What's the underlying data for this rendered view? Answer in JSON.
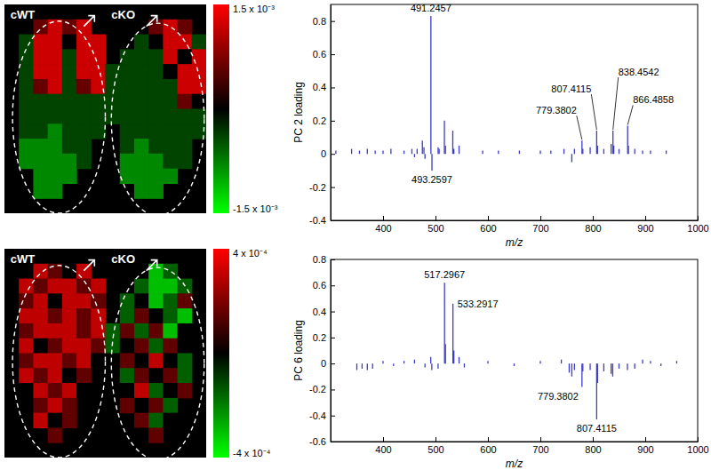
{
  "chart_data": [
    {
      "type": "heatmap",
      "section_labels": [
        "cWT",
        "cKO"
      ],
      "cells": [
        [
          null,
          null,
          null,
          null,
          null,
          null,
          null,
          null,
          null,
          null,
          null,
          null,
          null,
          null
        ],
        [
          null,
          null,
          0.0006,
          0.0012,
          0.0006,
          0.0012,
          null,
          null,
          null,
          null,
          0.0006,
          0.0012,
          0.0006,
          null
        ],
        [
          null,
          -0.0004,
          0.0012,
          0.0012,
          0,
          0.0012,
          0.0012,
          null,
          null,
          -0.0004,
          0,
          0.0012,
          0.0012,
          -0.0004
        ],
        [
          null,
          -0.0004,
          0.0012,
          0.0012,
          -0.0004,
          0.0012,
          0.0012,
          null,
          -0.0004,
          -0.0004,
          -0.0004,
          0.0012,
          0,
          0.0012
        ],
        [
          null,
          -0.0004,
          0.0012,
          0.0012,
          -0.0004,
          0.0012,
          0.0012,
          -0.0004,
          -0.0004,
          -0.0004,
          -0.0004,
          0,
          0.0012,
          0.0012
        ],
        [
          null,
          -0.0004,
          0.0006,
          0.0012,
          -0.0004,
          0.0006,
          0.0012,
          -0.0004,
          -0.0004,
          -0.0004,
          -0.0004,
          -0.0004,
          0.0012,
          0.0012
        ],
        [
          null,
          -0.0004,
          -0.0004,
          -0.0004,
          -0.0004,
          -0.0004,
          -0.0004,
          -0.0004,
          -0.0004,
          -0.0004,
          -0.0004,
          -0.0004,
          0.0006,
          0
        ],
        [
          null,
          -0.0004,
          -0.0004,
          -0.0004,
          -0.0004,
          -0.0004,
          -0.0004,
          -0.0004,
          -0.0004,
          -0.0004,
          -0.0004,
          -0.0004,
          -0.0004,
          -0.0004
        ],
        [
          null,
          -0.0004,
          -0.0004,
          -0.0008,
          -0.0004,
          -0.0004,
          -0.0004,
          null,
          -0.0004,
          -0.0004,
          -0.0004,
          -0.0004,
          -0.0004,
          -0.0004
        ],
        [
          null,
          -0.0008,
          -0.0008,
          -0.0008,
          -0.0004,
          -0.0004,
          null,
          null,
          -0.0004,
          -0.0008,
          -0.0004,
          -0.0004,
          -0.0004,
          null
        ],
        [
          null,
          -0.0008,
          -0.0008,
          -0.0008,
          -0.0008,
          -0.0004,
          null,
          null,
          -0.0008,
          -0.0008,
          -0.0008,
          -0.0004,
          -0.0004,
          null
        ],
        [
          null,
          null,
          -0.0008,
          -0.0008,
          -0.0008,
          null,
          null,
          null,
          -0.0008,
          -0.0008,
          -0.0008,
          -0.0008,
          null,
          null
        ],
        [
          null,
          null,
          -0.0008,
          -0.0008,
          null,
          null,
          null,
          null,
          null,
          -0.0008,
          -0.0008,
          null,
          null,
          null
        ],
        [
          null,
          null,
          null,
          null,
          null,
          null,
          null,
          null,
          null,
          null,
          null,
          null,
          null,
          null
        ]
      ],
      "colorbar_range": [
        -0.0015,
        0.0015
      ],
      "colorbar_ticks": [
        {
          "value": 0.0015,
          "label": "1.5 x 10⁻³"
        },
        {
          "value": -0.0015,
          "label": "-1.5 x 10⁻³"
        }
      ]
    },
    {
      "type": "stem",
      "x_label": "m/z",
      "y_label": "PC 2 loading",
      "color": "#3b3bc8",
      "x": [
        310,
        340,
        355,
        370,
        385,
        400,
        415,
        440,
        455,
        460,
        465,
        475,
        478,
        480,
        491.2457,
        493.2597,
        505,
        507,
        517,
        519,
        533,
        535,
        545,
        590,
        620,
        660,
        700,
        720,
        745,
        760,
        765,
        779.3802,
        781,
        795,
        807.4115,
        809,
        821,
        835,
        838.4542,
        840,
        850,
        866.4858,
        868,
        880,
        895,
        910,
        940
      ],
      "values": [
        0.02,
        0.03,
        0.02,
        0.03,
        0.02,
        0.02,
        0.03,
        0.02,
        0.03,
        -0.02,
        0.03,
        0.08,
        0.04,
        -0.03,
        0.83,
        -0.1,
        0.04,
        0.03,
        0.2,
        0.05,
        0.14,
        0.03,
        0.05,
        0.02,
        0.02,
        0.02,
        0.02,
        0.02,
        0.03,
        -0.05,
        0.03,
        0.08,
        0.03,
        0.04,
        0.14,
        0.05,
        0.03,
        0.06,
        0.14,
        0.05,
        0.03,
        0.17,
        0.05,
        0.03,
        0.02,
        0.02,
        0.02
      ],
      "xlim": [
        300,
        1000
      ],
      "xticks": [
        400,
        500,
        600,
        700,
        800,
        900,
        1000
      ],
      "ylim": [
        -0.4,
        0.9
      ],
      "yticks": [
        -0.4,
        -0.2,
        0,
        0.2,
        0.4,
        0.6,
        0.8
      ],
      "annotations": [
        {
          "x": 491.2457,
          "text": "491.2457"
        },
        {
          "x": 493.2597,
          "text": "493.2597"
        },
        {
          "x": 779.3802,
          "text": "779.3802"
        },
        {
          "x": 807.4115,
          "text": "807.4115"
        },
        {
          "x": 838.4542,
          "text": "838.4542"
        },
        {
          "x": 866.4858,
          "text": "866.4858"
        }
      ]
    },
    {
      "type": "heatmap",
      "section_labels": [
        "cWT",
        "cKO"
      ],
      "cells": [
        [
          null,
          null,
          null,
          null,
          null,
          null,
          null,
          null,
          null,
          null,
          null,
          null,
          null,
          null
        ],
        [
          null,
          null,
          0.0003,
          0.00015,
          0,
          0.0003,
          null,
          null,
          null,
          null,
          -0.0003,
          -0.00015,
          null,
          null
        ],
        [
          null,
          0.0003,
          0.00015,
          0.0003,
          0.0003,
          0.00015,
          0.0003,
          null,
          null,
          -0.00015,
          -0.0003,
          -0.0003,
          -0.00015,
          null
        ],
        [
          null,
          0.00015,
          0.0003,
          0,
          0.0003,
          0.0003,
          0.00015,
          null,
          -0.00015,
          0,
          -0.0003,
          -0.00015,
          0.00015,
          null
        ],
        [
          null,
          0.0003,
          0.0003,
          0.00015,
          0.0003,
          0.00015,
          0.0003,
          null,
          -0.00015,
          0.00015,
          0,
          -0.00015,
          -0.0003,
          null
        ],
        [
          null,
          0.00015,
          0.0003,
          0.0003,
          0.0003,
          0.00015,
          0.0003,
          -0.00015,
          0.00015,
          -0.00015,
          0.00015,
          -0.0003,
          0,
          null
        ],
        [
          null,
          0.0003,
          0,
          0.00015,
          0.0003,
          0.0003,
          0.00015,
          -0.00015,
          0,
          0.00015,
          -0.00015,
          0.00015,
          0,
          null
        ],
        [
          null,
          0.00015,
          0.0003,
          0.0003,
          0.00015,
          0.0003,
          0,
          0,
          0.00015,
          0,
          0.0003,
          0,
          -0.00015,
          null
        ],
        [
          null,
          0.0003,
          0.00015,
          0.0003,
          0,
          0.00015,
          null,
          null,
          -0.00015,
          0.00015,
          0,
          0.00015,
          -0.00015,
          null
        ],
        [
          null,
          0,
          0.0003,
          0.00015,
          0.0003,
          0,
          null,
          null,
          0,
          0.0003,
          -0.00015,
          0,
          0.00015,
          null
        ],
        [
          null,
          null,
          0.00015,
          0.0003,
          0.00015,
          null,
          null,
          null,
          0.00015,
          0,
          0.00015,
          -0.00015,
          null,
          null
        ],
        [
          null,
          null,
          0.0003,
          0,
          0.00015,
          null,
          null,
          null,
          null,
          0.00015,
          -0.00015,
          0,
          null,
          null
        ],
        [
          null,
          null,
          null,
          0.00015,
          null,
          null,
          null,
          null,
          null,
          0,
          0.00015,
          null,
          null,
          null
        ],
        [
          null,
          null,
          null,
          null,
          null,
          null,
          null,
          null,
          null,
          null,
          null,
          null,
          null,
          null
        ]
      ],
      "colorbar_range": [
        -0.0004,
        0.0004
      ],
      "colorbar_ticks": [
        {
          "value": 0.0004,
          "label": "4 x 10⁻⁴"
        },
        {
          "value": -0.0004,
          "label": "-4 x 10⁻⁴"
        }
      ]
    },
    {
      "type": "stem",
      "x_label": "m/z",
      "y_label": "PC 6 loading",
      "color": "#3b3bc8",
      "x": [
        350,
        360,
        370,
        380,
        400,
        420,
        440,
        460,
        480,
        491,
        493,
        505,
        517.2967,
        519,
        533.2917,
        535,
        545,
        555,
        600,
        650,
        700,
        740,
        755,
        760,
        765,
        779.3802,
        781,
        795,
        807.4115,
        809,
        821,
        835,
        838,
        850,
        866,
        880,
        895,
        910,
        930,
        960
      ],
      "values": [
        -0.05,
        -0.04,
        -0.05,
        -0.04,
        0.02,
        -0.02,
        0.02,
        0.03,
        -0.03,
        0.05,
        -0.05,
        -0.04,
        0.62,
        0.15,
        0.46,
        0.1,
        0.05,
        -0.03,
        0.02,
        -0.02,
        0.02,
        0.03,
        -0.07,
        -0.1,
        -0.05,
        -0.18,
        -0.06,
        -0.05,
        -0.43,
        -0.15,
        -0.06,
        -0.08,
        -0.1,
        -0.04,
        -0.05,
        -0.04,
        0.03,
        0.02,
        -0.02,
        0.02
      ],
      "xlim": [
        300,
        1000
      ],
      "xticks": [
        400,
        500,
        600,
        700,
        800,
        900,
        1000
      ],
      "ylim": [
        -0.6,
        0.8
      ],
      "yticks": [
        -0.6,
        -0.4,
        -0.2,
        0,
        0.2,
        0.4,
        0.6,
        0.8
      ],
      "annotations": [
        {
          "x": 517.2967,
          "text": "517.2967"
        },
        {
          "x": 533.2917,
          "text": "533.2917"
        },
        {
          "x": 779.3802,
          "text": "779.3802"
        },
        {
          "x": 807.4115,
          "text": "807.4115"
        }
      ]
    }
  ]
}
